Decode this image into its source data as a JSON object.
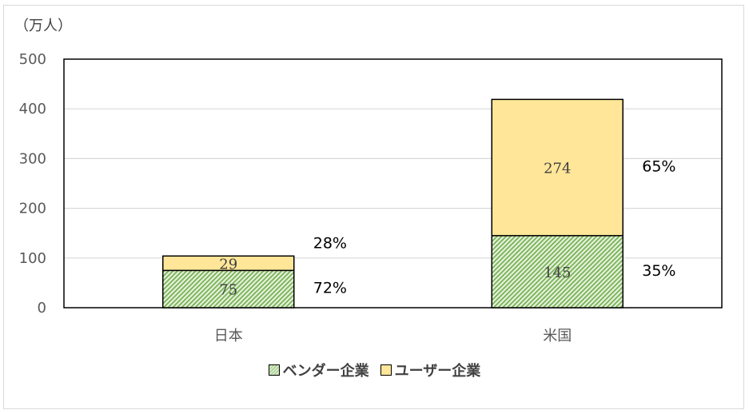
{
  "chart_data": {
    "type": "bar",
    "stacked": true,
    "unit_label": "（万人）",
    "categories": [
      "日本",
      "米国"
    ],
    "series": [
      {
        "name": "ベンダー企業",
        "values": [
          75,
          145
        ],
        "shares": [
          "72%",
          "35%"
        ],
        "color": "#a9d08e",
        "pattern": "diagonal-hatch"
      },
      {
        "name": "ユーザー企業",
        "values": [
          29,
          274
        ],
        "shares": [
          "28%",
          "65%"
        ],
        "color": "#ffe699"
      }
    ],
    "ylim": [
      0,
      500
    ],
    "yticks": [
      0,
      100,
      200,
      300,
      400,
      500
    ],
    "grid": true,
    "legend_position": "bottom"
  }
}
